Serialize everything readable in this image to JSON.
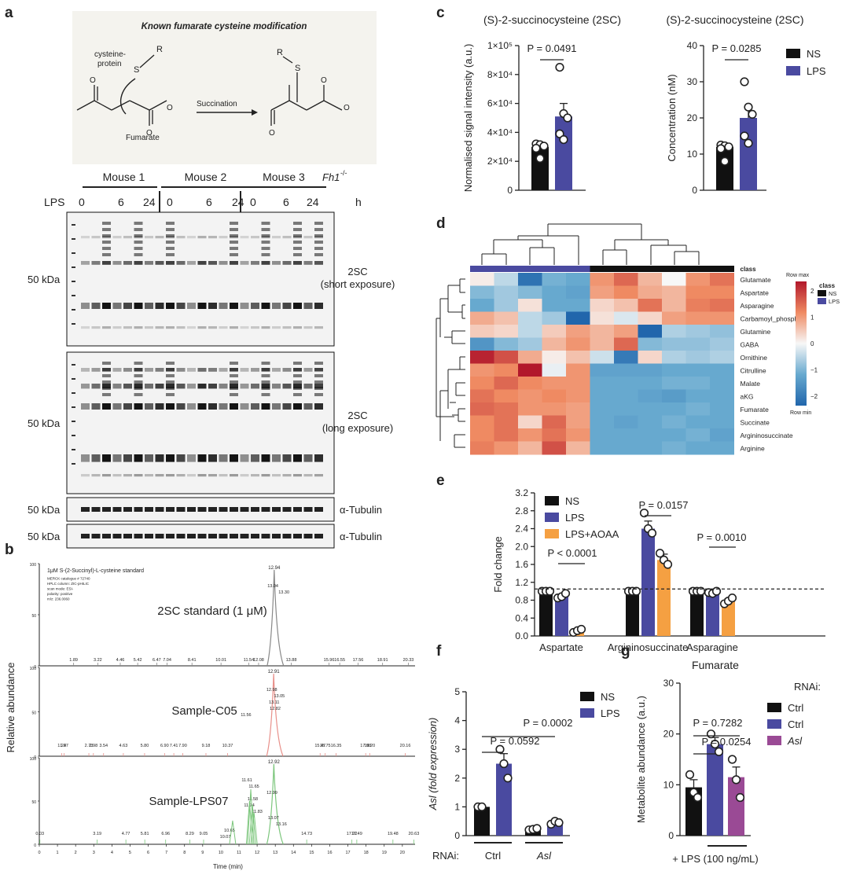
{
  "panel_letters": [
    "a",
    "b",
    "c",
    "d",
    "e",
    "f",
    "g"
  ],
  "colors": {
    "ns": "#111111",
    "lps": "#4a4aa0",
    "aoaa": "#f5a042",
    "asl": "#9a4a95",
    "heat_hi": "#b2182b",
    "heat_lo": "#2166ac",
    "heat_mid": "#f7f7f7",
    "chrom_red": "#e8908a",
    "chrom_green": "#7cc67c"
  },
  "panel_a": {
    "scheme_title": "Known fumarate cysteine modification",
    "cys_label": "cysteine-\nprotein",
    "S": "S",
    "R": "R",
    "fumarate_label": "Fumarate",
    "arrow_label": "Succination",
    "mice": [
      "Mouse 1",
      "Mouse 2",
      "Mouse 3"
    ],
    "fh1_label": "Fh1",
    "fh1_sup": "-/-",
    "lps_label": "LPS",
    "timepoints": [
      "0",
      "6",
      "24"
    ],
    "unit": "h",
    "mw": "50 kDa",
    "blot_labels": [
      "2SC\n(short exposure)",
      "2SC\n(long exposure)",
      "α-Tubulin",
      "α-Tubulin"
    ]
  },
  "panel_b": {
    "ylabel": "Relative abundance",
    "xlabel": "Time (min)",
    "header_lines": [
      "1μM S-(2-Succinyl)-L-cysteine standard",
      "MERCK catalogue # 72740",
      "HPLC column: ZIC-pHILIC",
      "scan mode: ESI-",
      "polarity: positive",
      "m/z: 236.0060"
    ],
    "y_ticks": [
      "0",
      "50",
      "100"
    ],
    "x_ticks": [
      "0",
      "1",
      "2",
      "3",
      "4",
      "5",
      "6",
      "7",
      "8",
      "9",
      "10",
      "11",
      "12",
      "13",
      "14",
      "15",
      "16",
      "17",
      "18",
      "19",
      "20"
    ],
    "traces": [
      {
        "name": "2SC standard (1 μM)",
        "apex": "12.94",
        "peak_labels": [
          "13.04",
          "13.30"
        ],
        "baseline_labels": [
          "1.89",
          "3.22",
          "4.46",
          "5.42",
          "6.47",
          "7.04",
          "8.41",
          "10.01",
          "11.54",
          "12.08",
          "13.88",
          "15.96",
          "16.55",
          "17.56",
          "18.91",
          "20.33"
        ]
      },
      {
        "name": "Sample-C05",
        "apex": "12.91",
        "peak_labels": [
          "12.98",
          "13.05",
          "13.11",
          "12.82",
          "11.56"
        ],
        "baseline_labels": [
          "1.24",
          "1.37",
          "2.73",
          "2.98",
          "3.54",
          "4.63",
          "5.80",
          "6.90",
          "7.41",
          "7.90",
          "9.18",
          "10.37",
          "15.47",
          "15.75",
          "16.35",
          "17.98",
          "18.20",
          "20.16"
        ]
      },
      {
        "name": "Sample-LPS07",
        "apex": "12.92",
        "peak_labels": [
          "11.61",
          "11.65",
          "12.99",
          "11.58",
          "11.74",
          "11.83",
          "13.07",
          "13.16",
          "10.65",
          "10.07"
        ],
        "baseline_labels": [
          "0.03",
          "3.19",
          "4.77",
          "5.81",
          "6.96",
          "8.29",
          "9.05",
          "14.73",
          "17.22",
          "17.49",
          "19.48",
          "20.63"
        ]
      }
    ]
  },
  "chart_data": [
    {
      "panel": "c-left",
      "type": "bar",
      "title": "(S)-2-succinocysteine (2SC)",
      "ylabel": "Normalised signal intensity (a.u.)",
      "y_ticks": [
        "0",
        "2×10⁴",
        "4×10⁴",
        "6×10⁴",
        "8×10⁴",
        "1×10⁵"
      ],
      "ylim": [
        0,
        100000
      ],
      "categories": [
        "NS",
        "LPS"
      ],
      "values": [
        30000,
        51000
      ],
      "errors": [
        2500,
        9000
      ],
      "points": [
        [
          32000,
          31500,
          30500,
          29000,
          22000
        ],
        [
          85000,
          53000,
          50000,
          39000,
          35000
        ]
      ],
      "annotations": [
        "P = 0.0491"
      ]
    },
    {
      "panel": "c-right",
      "type": "bar",
      "title": "(S)-2-succinocysteine (2SC)",
      "ylabel": "Concentration (nM)",
      "y_ticks": [
        "0",
        "10",
        "20",
        "30",
        "40"
      ],
      "ylim": [
        0,
        40
      ],
      "categories": [
        "NS",
        "LPS"
      ],
      "values": [
        12,
        20
      ],
      "errors": [
        1,
        3
      ],
      "points": [
        [
          12.5,
          12.3,
          12.0,
          11.5,
          8
        ],
        [
          30,
          23,
          21,
          15,
          13
        ]
      ],
      "annotations": [
        "P = 0.0285"
      ],
      "legend": [
        "NS",
        "LPS"
      ]
    },
    {
      "panel": "d",
      "type": "heatmap",
      "legend_title": "class",
      "legend": [
        "NS",
        "LPS"
      ],
      "scale_labels": [
        "Row max",
        "Row min"
      ],
      "scale_ticks": [
        "2",
        "1",
        "0",
        "−1",
        "−2"
      ],
      "rows": [
        "Glutamate",
        "Aspartate",
        "Asparagine",
        "Carbamoyl_phosphat",
        "Glutamine",
        "GABA",
        "Ornithine",
        "Citrulline",
        "Malate",
        "aKG",
        "Fumarate",
        "Succinate",
        "Argininosuccinate",
        "Arginine"
      ],
      "columns": [
        "LPS",
        "LPS",
        "LPS",
        "LPS",
        "LPS",
        "NS",
        "NS",
        "NS",
        "NS",
        "NS",
        "NS"
      ],
      "values": [
        [
          0.1,
          -0.4,
          -1.8,
          -0.9,
          -1.0,
          0.9,
          1.3,
          0.6,
          0.0,
          0.9,
          1.2
        ],
        [
          -0.8,
          -0.6,
          -0.8,
          -1.0,
          -1.1,
          0.8,
          1.0,
          0.7,
          0.6,
          1.0,
          1.0
        ],
        [
          -1.0,
          -0.6,
          0.2,
          -1.0,
          -1.0,
          0.3,
          0.5,
          1.2,
          0.6,
          1.1,
          1.2
        ],
        [
          0.7,
          0.5,
          -0.4,
          -0.6,
          -2.0,
          0.2,
          -0.2,
          0.3,
          0.8,
          0.9,
          0.9
        ],
        [
          0.4,
          0.3,
          -0.4,
          0.4,
          0.8,
          0.6,
          0.8,
          -2.0,
          -0.5,
          -0.6,
          -0.7
        ],
        [
          -1.3,
          -0.8,
          -0.6,
          0.6,
          0.9,
          0.6,
          1.3,
          -0.8,
          -0.7,
          -0.7,
          -0.6
        ],
        [
          1.9,
          1.5,
          0.7,
          0.1,
          0.5,
          -0.3,
          -1.7,
          0.3,
          -0.5,
          -0.6,
          -0.5
        ],
        [
          0.9,
          1.0,
          2.0,
          -0.1,
          0.9,
          -1.1,
          -1.1,
          -1.1,
          -1.0,
          -1.0,
          -1.0
        ],
        [
          1.0,
          1.3,
          1.0,
          0.9,
          0.9,
          -1.0,
          -1.0,
          -1.0,
          -0.9,
          -0.9,
          -1.0
        ],
        [
          1.2,
          1.0,
          0.9,
          1.0,
          0.9,
          -1.0,
          -1.0,
          -1.1,
          -1.2,
          -1.0,
          -1.0
        ],
        [
          1.3,
          1.2,
          0.9,
          0.9,
          0.8,
          -1.0,
          -1.0,
          -1.0,
          -1.0,
          -0.9,
          -1.0
        ],
        [
          1.0,
          1.2,
          0.3,
          1.3,
          0.8,
          -1.0,
          -1.1,
          -1.0,
          -0.9,
          -1.0,
          -1.0
        ],
        [
          1.0,
          1.2,
          0.9,
          1.2,
          0.9,
          -1.0,
          -1.0,
          -1.0,
          -1.0,
          -0.9,
          -1.1
        ],
        [
          1.1,
          0.9,
          0.6,
          1.5,
          0.6,
          -1.0,
          -1.0,
          -1.0,
          -0.9,
          -1.0,
          -1.0
        ]
      ]
    },
    {
      "panel": "e",
      "type": "bar",
      "ylabel": "Fold change",
      "y_ticks": [
        "0.0",
        "0.4",
        "0.8",
        "1.2",
        "1.6",
        "2.0",
        "2.4",
        "2.8",
        "3.2"
      ],
      "ylim": [
        0,
        3.2
      ],
      "categories": [
        "Aspartate",
        "Argininosuccinate",
        "Asparagine"
      ],
      "series": [
        {
          "name": "NS",
          "values": [
            1.0,
            1.0,
            1.0
          ],
          "errors": [
            0.02,
            0.02,
            0.02
          ]
        },
        {
          "name": "LPS",
          "values": [
            0.87,
            2.4,
            0.97
          ],
          "errors": [
            0.04,
            0.17,
            0.03
          ]
        },
        {
          "name": "LPS+AOAA",
          "values": [
            0.12,
            1.7,
            0.78
          ],
          "errors": [
            0.03,
            0.13,
            0.05
          ]
        }
      ],
      "points": [
        [
          [
            1.0,
            1.0,
            1.0
          ],
          [
            0.85,
            0.88,
            0.95
          ],
          [
            0.08,
            0.12,
            0.15
          ]
        ],
        [
          [
            1.0,
            1.0,
            1.0
          ],
          [
            2.75,
            2.4,
            2.3
          ],
          [
            1.85,
            1.7,
            1.6
          ]
        ],
        [
          [
            1.0,
            1.0,
            1.0
          ],
          [
            0.97,
            0.95,
            1.0
          ],
          [
            0.72,
            0.78,
            0.85
          ]
        ]
      ],
      "annotations": [
        "P < 0.0001",
        "P = 0.0157",
        "P = 0.0010"
      ],
      "reference_line": 1.05
    },
    {
      "panel": "f",
      "type": "bar",
      "ylabel": "Asl (fold expression)",
      "y_ticks": [
        "0",
        "1",
        "2",
        "3",
        "4",
        "5"
      ],
      "ylim": [
        0,
        5
      ],
      "group_prefix": "RNAi:",
      "categories": [
        "Ctrl",
        "Asl"
      ],
      "series": [
        {
          "name": "NS",
          "values": [
            1.0,
            0.22
          ],
          "errors": [
            0.02,
            0.03
          ]
        },
        {
          "name": "LPS",
          "values": [
            2.5,
            0.45
          ],
          "errors": [
            0.35,
            0.05
          ]
        }
      ],
      "points": [
        [
          [
            1.0,
            1.0
          ],
          [
            3.0,
            2.5,
            2.0
          ]
        ],
        [
          [
            0.2,
            0.22,
            0.25
          ],
          [
            0.4,
            0.5,
            0.45
          ]
        ]
      ],
      "annotations": [
        "P = 0.0592",
        "P = 0.0002"
      ]
    },
    {
      "panel": "g",
      "type": "bar",
      "title": "Fumarate",
      "ylabel": "Metabolite abundance (a.u.)",
      "y_ticks": [
        "0",
        "10",
        "20",
        "30"
      ],
      "ylim": [
        0,
        30
      ],
      "categories": [
        "Ctrl",
        "Ctrl",
        "Asl"
      ],
      "values": [
        9.5,
        18,
        11.5
      ],
      "errors": [
        1.5,
        1.3,
        2
      ],
      "points": [
        [
          12,
          8.5,
          7.5
        ],
        [
          20,
          18,
          16.5
        ],
        [
          15,
          11,
          7.5
        ]
      ],
      "annotations": [
        "P = 0.7282",
        "P = 0.0254"
      ],
      "legend_title": "RNAi:",
      "legend": [
        "Ctrl",
        "Ctrl",
        "Asl"
      ],
      "xlabel": "+ LPS (100 ng/mL)"
    }
  ]
}
